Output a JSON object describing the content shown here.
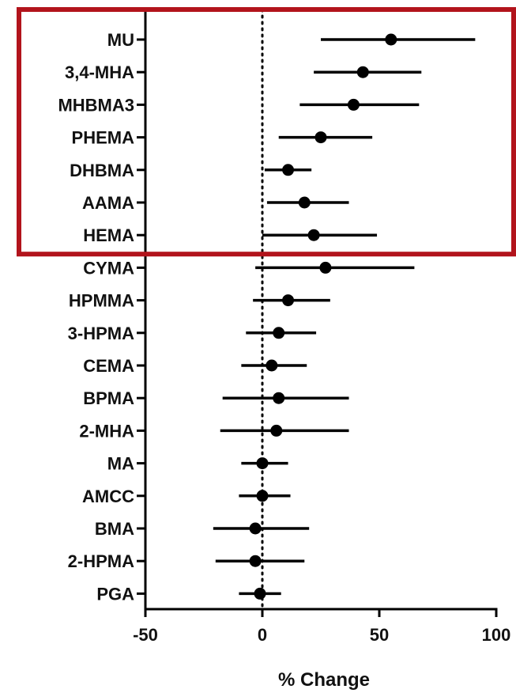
{
  "chart_data": {
    "type": "scatter",
    "style": "forest-plot",
    "xlabel": "% Change",
    "xlim": [
      -50,
      100
    ],
    "xticks": [
      -50,
      0,
      50,
      100
    ],
    "reference_line": 0,
    "highlight": {
      "color": "#b2141c",
      "categories": [
        "MU",
        "3,4-MHA",
        "MHBMA3",
        "PHEMA",
        "DHBMA",
        "AAMA",
        "HEMA"
      ]
    },
    "categories": [
      "MU",
      "3,4-MHA",
      "MHBMA3",
      "PHEMA",
      "DHBMA",
      "AAMA",
      "HEMA",
      "CYMA",
      "HPMMA",
      "3-HPMA",
      "CEMA",
      "BPMA",
      "2-MHA",
      "MA",
      "AMCC",
      "BMA",
      "2-HPMA",
      "PGA"
    ],
    "series": [
      {
        "estimate": [
          55,
          43,
          39,
          25,
          11,
          18,
          22,
          27,
          11,
          7,
          4,
          7,
          6,
          0,
          0,
          -3,
          -3,
          -1
        ],
        "lower": [
          25,
          22,
          16,
          7,
          1,
          2,
          0,
          -3,
          -4,
          -7,
          -9,
          -17,
          -18,
          -9,
          -10,
          -21,
          -20,
          -10
        ],
        "upper": [
          91,
          68,
          67,
          47,
          21,
          37,
          49,
          65,
          29,
          23,
          19,
          37,
          37,
          11,
          12,
          20,
          18,
          8
        ]
      }
    ],
    "marker_color": "#000000"
  }
}
